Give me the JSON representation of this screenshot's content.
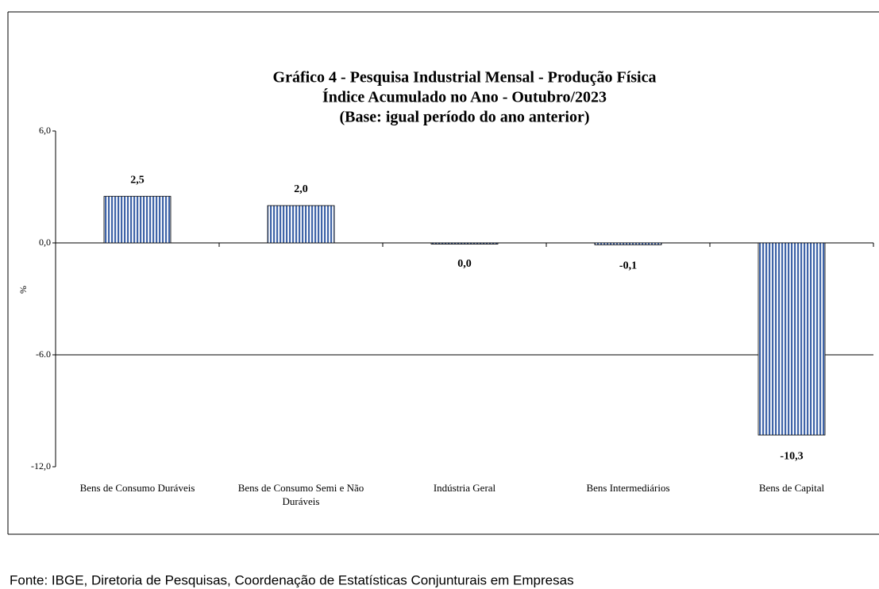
{
  "chart_data": {
    "type": "bar",
    "title": [
      "Gráfico 4 - Pesquisa Industrial Mensal - Produção Física",
      "Índice Acumulado no Ano - Outubro/2023",
      "(Base: igual período do ano anterior)"
    ],
    "categories": [
      "Bens de Consumo Duráveis",
      "Bens de Consumo Semi e Não Duráveis",
      "Indústria Geral",
      "Bens Intermediários",
      "Bens de Capital"
    ],
    "values": [
      2.5,
      2.0,
      0.0,
      -0.1,
      -10.3
    ],
    "value_labels": [
      "2,5",
      "2,0",
      "0,0",
      "-0,1",
      "-10,3"
    ],
    "color": "#3f64a8",
    "ylabel": "%",
    "ylim": [
      -12.0,
      6.0
    ],
    "yticks": [
      {
        "value": -12.0,
        "label": "-12,0"
      },
      {
        "value": -6.0,
        "label": "-6.0"
      },
      {
        "value": 0.0,
        "label": "0,0"
      },
      {
        "value": 6.0,
        "label": "6,0"
      }
    ],
    "grid": true,
    "source": "Fonte: IBGE, Diretoria de Pesquisas, Coordenação de Estatísticas Conjunturais em Empresas"
  }
}
